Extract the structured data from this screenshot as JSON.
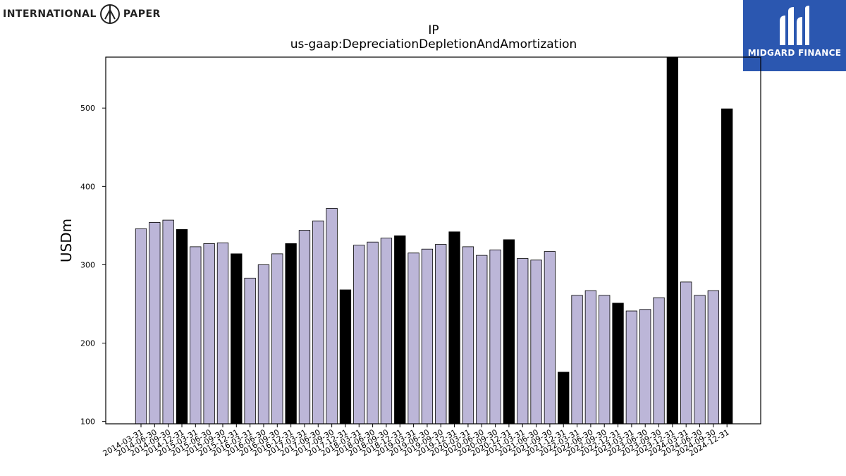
{
  "header": {
    "ip_logo_left": "INTERNATIONAL",
    "ip_logo_right": "PAPER",
    "midgard_name": "MIDGARD FINANCE"
  },
  "colors": {
    "bar_regular": "#bcb6d8",
    "bar_highlight": "#000000",
    "bar_edge": "#000000",
    "brand_blue": "#2b57b0"
  },
  "chart_data": {
    "type": "bar",
    "title": "IP",
    "subtitle": "us-gaap:DepreciationDepletionAndAmortization",
    "xlabel": "",
    "ylabel": "USDm",
    "ylim": [
      97,
      565
    ],
    "yticks": [
      100,
      200,
      300,
      400,
      500
    ],
    "grid": false,
    "legend": "none",
    "categories": [
      "2014-03-31",
      "2014-06-30",
      "2014-09-30",
      "2014-12-31",
      "2015-03-31",
      "2015-06-30",
      "2015-09-30",
      "2015-12-31",
      "2016-03-31",
      "2016-06-30",
      "2016-09-30",
      "2016-12-31",
      "2017-03-31",
      "2017-06-30",
      "2017-09-30",
      "2017-12-31",
      "2018-03-31",
      "2018-06-30",
      "2018-09-30",
      "2018-12-31",
      "2019-03-31",
      "2019-06-30",
      "2019-09-30",
      "2019-12-31",
      "2020-03-31",
      "2020-06-30",
      "2020-09-30",
      "2020-12-31",
      "2021-03-31",
      "2021-06-30",
      "2021-09-30",
      "2021-12-31",
      "2022-03-31",
      "2022-06-30",
      "2022-09-30",
      "2022-12-31",
      "2023-03-31",
      "2023-06-30",
      "2023-09-30",
      "2023-12-31",
      "2024-03-31",
      "2024-06-30",
      "2024-09-30",
      "2024-12-31"
    ],
    "values": [
      346,
      354,
      357,
      345,
      323,
      327,
      328,
      314,
      283,
      300,
      314,
      327,
      344,
      356,
      372,
      268,
      325,
      329,
      334,
      337,
      315,
      320,
      326,
      342,
      323,
      312,
      319,
      332,
      308,
      306,
      317,
      163,
      261,
      267,
      261,
      251,
      241,
      243,
      258,
      565,
      278,
      261,
      267,
      499
    ],
    "highlight": [
      false,
      false,
      false,
      true,
      false,
      false,
      false,
      true,
      false,
      false,
      false,
      true,
      false,
      false,
      false,
      true,
      false,
      false,
      false,
      true,
      false,
      false,
      false,
      true,
      false,
      false,
      false,
      true,
      false,
      false,
      false,
      true,
      false,
      false,
      false,
      true,
      false,
      false,
      false,
      true,
      false,
      false,
      false,
      true
    ]
  }
}
